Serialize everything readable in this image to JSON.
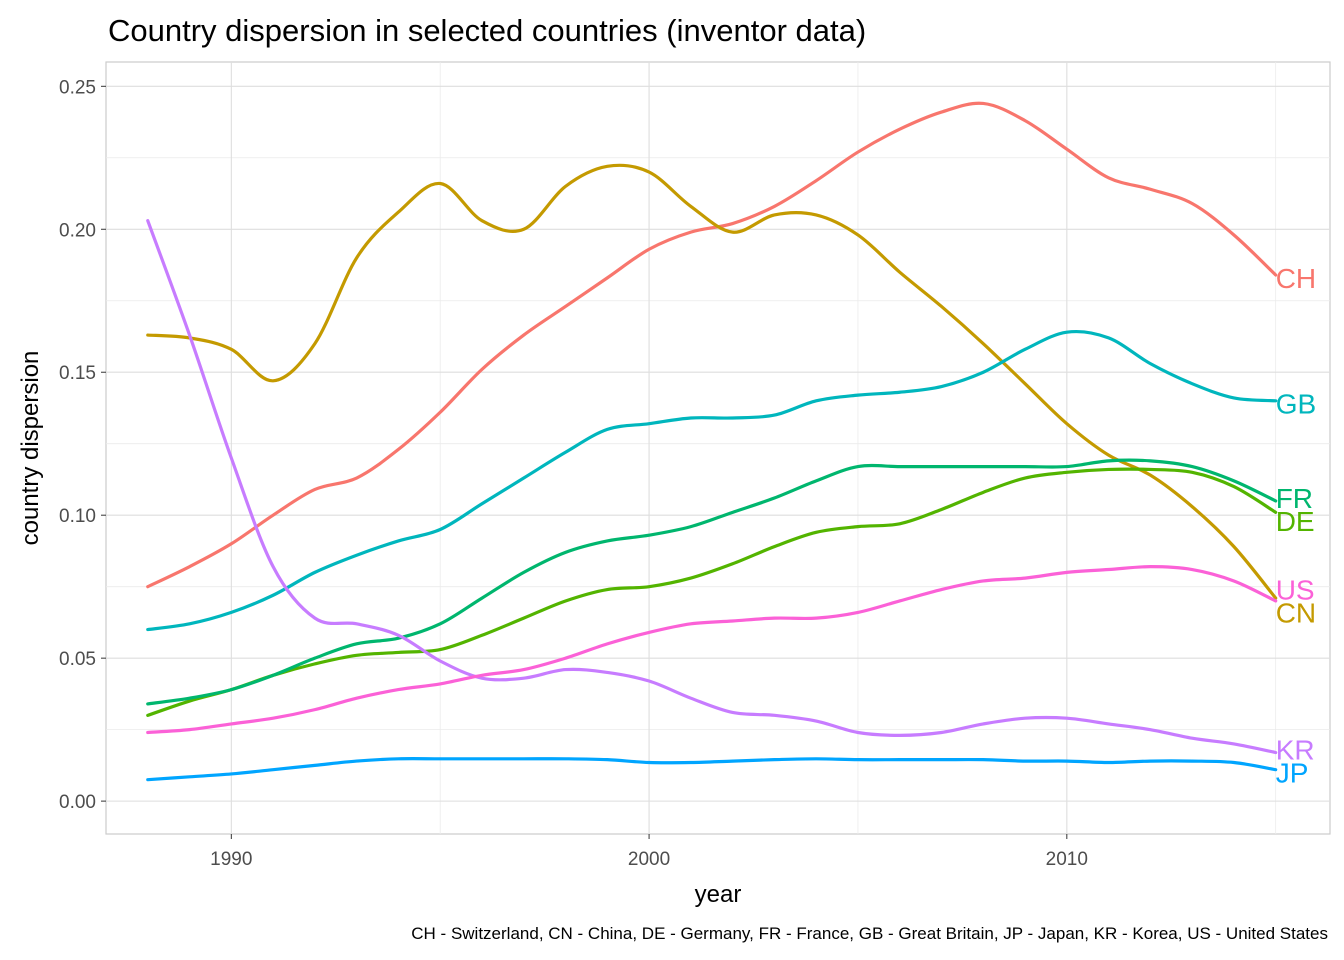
{
  "chart_data": {
    "type": "line",
    "title": "Country dispersion in selected countries (inventor data)",
    "xlabel": "year",
    "ylabel": "country dispersion",
    "caption": "CH - Switzerland, CN - China, DE - Germany, FR - France, GB - Great Britain, JP - Japan, KR - Korea, US - United States",
    "xlim": [
      1987.0,
      2016.3
    ],
    "ylim": [
      -0.0115,
      0.2585
    ],
    "x_ticks": [
      1990,
      2000,
      2010
    ],
    "x_tick_labels": [
      "1990",
      "2000",
      "2010"
    ],
    "y_ticks": [
      0.0,
      0.05,
      0.1,
      0.15,
      0.2,
      0.25
    ],
    "y_tick_labels": [
      "0.00",
      "0.05",
      "0.10",
      "0.15",
      "0.20",
      "0.25"
    ],
    "grid": true,
    "legend": "direct labels at line ends (right)",
    "x": [
      1988,
      1989,
      1990,
      1991,
      1992,
      1993,
      1994,
      1995,
      1996,
      1997,
      1998,
      1999,
      2000,
      2001,
      2002,
      2003,
      2004,
      2005,
      2006,
      2007,
      2008,
      2009,
      2010,
      2011,
      2012,
      2013,
      2014,
      2015
    ],
    "series": [
      {
        "name": "CH",
        "color": "#F8766D",
        "values": [
          0.075,
          0.082,
          0.09,
          0.1,
          0.109,
          0.113,
          0.123,
          0.136,
          0.151,
          0.163,
          0.173,
          0.183,
          0.193,
          0.199,
          0.202,
          0.208,
          0.217,
          0.227,
          0.235,
          0.241,
          0.244,
          0.238,
          0.228,
          0.218,
          0.214,
          0.209,
          0.198,
          0.184
        ]
      },
      {
        "name": "CN",
        "color": "#C49A00",
        "values": [
          0.163,
          0.162,
          0.158,
          0.147,
          0.16,
          0.19,
          0.206,
          0.216,
          0.203,
          0.2,
          0.215,
          0.222,
          0.22,
          0.208,
          0.199,
          0.205,
          0.205,
          0.198,
          0.185,
          0.173,
          0.16,
          0.146,
          0.132,
          0.121,
          0.114,
          0.103,
          0.089,
          0.071
        ]
      },
      {
        "name": "DE",
        "color": "#53B400",
        "values": [
          0.03,
          0.035,
          0.039,
          0.044,
          0.048,
          0.051,
          0.052,
          0.053,
          0.058,
          0.064,
          0.07,
          0.074,
          0.075,
          0.078,
          0.083,
          0.089,
          0.094,
          0.096,
          0.097,
          0.102,
          0.108,
          0.113,
          0.115,
          0.116,
          0.116,
          0.115,
          0.11,
          0.101
        ]
      },
      {
        "name": "FR",
        "color": "#00B66E",
        "values": [
          0.034,
          0.036,
          0.039,
          0.044,
          0.05,
          0.055,
          0.057,
          0.062,
          0.071,
          0.08,
          0.087,
          0.091,
          0.093,
          0.096,
          0.101,
          0.106,
          0.112,
          0.117,
          0.117,
          0.117,
          0.117,
          0.117,
          0.117,
          0.119,
          0.119,
          0.117,
          0.112,
          0.105
        ]
      },
      {
        "name": "GB",
        "color": "#00B6BD",
        "values": [
          0.06,
          0.062,
          0.066,
          0.072,
          0.08,
          0.086,
          0.091,
          0.095,
          0.104,
          0.113,
          0.122,
          0.13,
          0.132,
          0.134,
          0.134,
          0.135,
          0.14,
          0.142,
          0.143,
          0.145,
          0.15,
          0.158,
          0.164,
          0.162,
          0.153,
          0.146,
          0.141,
          0.14
        ]
      },
      {
        "name": "JP",
        "color": "#00A5FF",
        "values": [
          0.0075,
          0.0085,
          0.0095,
          0.011,
          0.0125,
          0.014,
          0.0148,
          0.0148,
          0.0148,
          0.0148,
          0.0148,
          0.0145,
          0.0135,
          0.0135,
          0.014,
          0.0145,
          0.0148,
          0.0145,
          0.0145,
          0.0145,
          0.0145,
          0.014,
          0.014,
          0.0135,
          0.014,
          0.014,
          0.0135,
          0.011
        ]
      },
      {
        "name": "KR",
        "color": "#C77CFF",
        "values": [
          0.203,
          0.163,
          0.12,
          0.082,
          0.064,
          0.062,
          0.058,
          0.049,
          0.043,
          0.043,
          0.046,
          0.045,
          0.042,
          0.036,
          0.031,
          0.03,
          0.028,
          0.024,
          0.023,
          0.024,
          0.027,
          0.029,
          0.029,
          0.027,
          0.025,
          0.022,
          0.02,
          0.017
        ]
      },
      {
        "name": "US",
        "color": "#FB61D7",
        "values": [
          0.024,
          0.025,
          0.027,
          0.029,
          0.032,
          0.036,
          0.039,
          0.041,
          0.044,
          0.046,
          0.05,
          0.055,
          0.059,
          0.062,
          0.063,
          0.064,
          0.064,
          0.066,
          0.07,
          0.074,
          0.077,
          0.078,
          0.08,
          0.081,
          0.082,
          0.081,
          0.077,
          0.07
        ]
      }
    ],
    "end_labels": [
      {
        "text": "CH",
        "color": "#F8766D",
        "value": 0.183
      },
      {
        "text": "GB",
        "color": "#00B6BD",
        "value": 0.139
      },
      {
        "text": "FR",
        "color": "#00B66E",
        "value": 0.106
      },
      {
        "text": "DE",
        "color": "#53B400",
        "value": 0.098
      },
      {
        "text": "US",
        "color": "#FB61D7",
        "value": 0.074
      },
      {
        "text": "CN",
        "color": "#C49A00",
        "value": 0.066
      },
      {
        "text": "KR",
        "color": "#C77CFF",
        "value": 0.018
      },
      {
        "text": "JP",
        "color": "#00A5FF",
        "value": 0.01
      }
    ]
  }
}
